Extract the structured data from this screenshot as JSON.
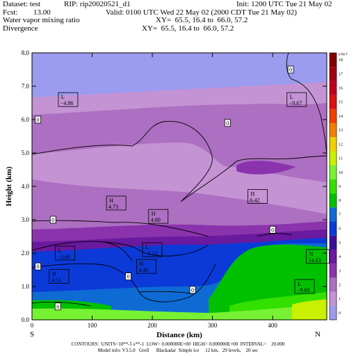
{
  "header": {
    "dataset": "Dataset: test",
    "rip": "RIP: rip20020521_d1",
    "init": "Init: 1200 UTC Tue 21 May 02",
    "fcst": "Fcst:",
    "fcst_value": "13.00",
    "valid": "Valid: 0100 UTC Wed 22 May 02 (2000 CDT Tue 21 May 02)",
    "field1": "Water vapor mixing ratio",
    "xy1": "XY=  65.5, 16.4 to  66.0, 57.2",
    "field2": "Divergence",
    "xy2": "XY=  65.5, 16.4 to  66.0, 57.2"
  },
  "footer": {
    "line1": "CONTOURS:  UNITS=10**-5 s**-1  LOW= 0.000000E+00  HIGH= 0.000000E+00  INTERVAL=    20.000",
    "line2": "Model info: V3.5.0   Grell      Blackadar  Simple ice     12 km,   29 levels,    20 sec"
  },
  "chart_data": {
    "type": "cross-section",
    "xlabel": "Distance (km)",
    "ylabel": "Height (km)",
    "xlim": [
      0,
      490
    ],
    "ylim": [
      0,
      8
    ],
    "x_ticks": [
      "0",
      "100",
      "200",
      "300",
      "400"
    ],
    "y_ticks": [
      "0.0",
      "1.0",
      "2.0",
      "3.0",
      "4.0",
      "5.0",
      "6.0",
      "7.0",
      "8.0"
    ],
    "endpoints": {
      "left": "S",
      "right": "N"
    },
    "colorbar": {
      "unit": "g kg-1",
      "labels": [
        "0",
        "1",
        "2",
        "3",
        "4",
        "5",
        "6",
        "7",
        "8",
        "9",
        "10",
        "11",
        "12",
        "13",
        "14",
        "15",
        "16",
        "17",
        "18"
      ],
      "colors": [
        "#9b9bef",
        "#c493d3",
        "#ad6fc1",
        "#8a33ad",
        "#6a1a9e",
        "#3a0f9a",
        "#0b3ad8",
        "#0e6bd4",
        "#00c000",
        "#33e000",
        "#77f233",
        "#c8f000",
        "#f0d000",
        "#f08000",
        "#f04000",
        "#e01010",
        "#c00020",
        "#a00010",
        "#800000"
      ]
    },
    "labels": [
      {
        "kind": "L",
        "value": "4.86",
        "x": 60,
        "y": 6.6
      },
      {
        "kind": "L",
        "value": "9.67",
        "x": 440,
        "y": 6.6
      },
      {
        "kind": "H",
        "value": "4.73",
        "x": 140,
        "y": 3.5
      },
      {
        "kind": "H",
        "value": "4.80",
        "x": 210,
        "y": 3.1
      },
      {
        "kind": "H",
        "value": "6.42",
        "x": 375,
        "y": 3.7
      },
      {
        "kind": "L",
        "value": "5.15",
        "x": 200,
        "y": 2.1
      },
      {
        "kind": "L",
        "value": "5.60",
        "x": 55,
        "y": 2.0
      },
      {
        "kind": "H",
        "value": "4.45",
        "x": 190,
        "y": 1.6
      },
      {
        "kind": "N",
        "value": "14.63",
        "x": 475,
        "y": 1.9
      },
      {
        "kind": "H",
        "value": "4.51",
        "x": 45,
        "y": 1.3
      },
      {
        "kind": "L",
        "value": "9.83",
        "x": 453,
        "y": 1.0
      }
    ],
    "zero_contour_labels": [
      {
        "text": "0",
        "x": 430,
        "y": 7.5
      },
      {
        "text": "0",
        "x": 10,
        "y": 6.0
      },
      {
        "text": "0",
        "x": 325,
        "y": 5.9
      },
      {
        "text": "0",
        "x": 35,
        "y": 3.0
      },
      {
        "text": "0",
        "x": 400,
        "y": 2.7
      },
      {
        "text": "0",
        "x": 10,
        "y": 1.6
      },
      {
        "text": "0",
        "x": 160,
        "y": 1.3
      },
      {
        "text": "0",
        "x": 267,
        "y": 0.9
      },
      {
        "text": "0",
        "x": 43,
        "y": 0.4
      }
    ]
  }
}
